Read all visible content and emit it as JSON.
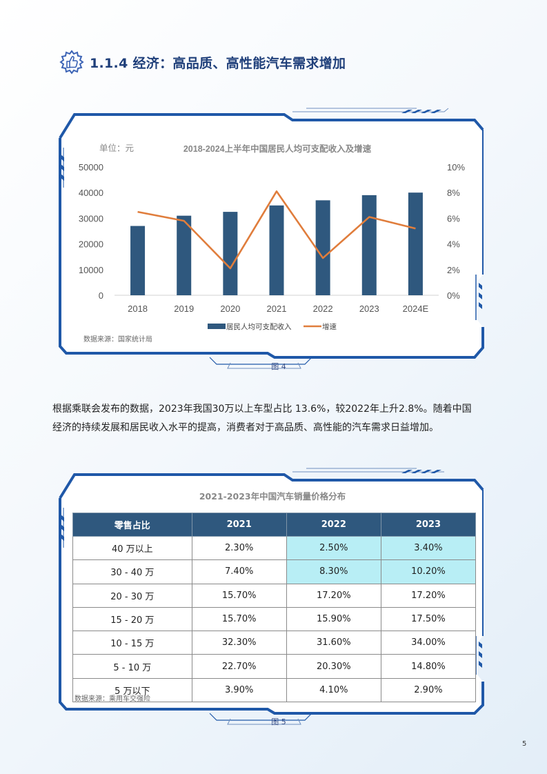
{
  "heading": {
    "icon": "thumbs-up-gear-icon",
    "title": "1.1.4 经济：高品质、高性能汽车需求增加"
  },
  "figure4": {
    "caption": "图 4",
    "source": "数据来源：国家统计局"
  },
  "chart_data": {
    "type": "bar",
    "title": "2018-2024上半年中国居民人均可支配收入及增速",
    "unit_label": "单位：元",
    "categories": [
      "2018",
      "2019",
      "2020",
      "2021",
      "2022",
      "2023",
      "2024E"
    ],
    "series": [
      {
        "name": "居民人均可支配收入",
        "type": "bar",
        "axis": "left",
        "color": "#2f587e",
        "values": [
          27000,
          31000,
          32500,
          35000,
          37000,
          39000,
          40000
        ]
      },
      {
        "name": "增速",
        "type": "line",
        "axis": "right",
        "color": "#e07d3c",
        "values": [
          6.5,
          5.8,
          2.1,
          8.1,
          2.9,
          6.1,
          5.2
        ]
      }
    ],
    "y_left": {
      "ticks": [
        "0",
        "10000",
        "20000",
        "30000",
        "40000",
        "50000"
      ],
      "ylim": [
        0,
        50000
      ]
    },
    "y_right": {
      "ticks": [
        "0%",
        "2%",
        "4%",
        "6%",
        "8%",
        "10%"
      ],
      "ylim": [
        0,
        10
      ]
    },
    "grid": false,
    "legend_position": "bottom"
  },
  "paragraph": {
    "line1": "根据乘联会发布的数据，2023年我国30万以上车型占比 13.6%，较2022年上升2.8%。随着中国",
    "line2": "经济的持续发展和居民收入水平的提高，消费者对于高品质、高性能的汽车需求日益增加。"
  },
  "figure5": {
    "title": "2021-2023年中国汽车销量价格分布",
    "caption": "图 5",
    "source": "数据来源：乘用车交强险",
    "headers": [
      "零售占比",
      "2021",
      "2022",
      "2023"
    ],
    "rows": [
      [
        "40 万以上",
        "2.30%",
        "2.50%",
        "3.40%"
      ],
      [
        "30 - 40 万",
        "7.40%",
        "8.30%",
        "10.20%"
      ],
      [
        "20 - 30 万",
        "15.70%",
        "17.20%",
        "17.20%"
      ],
      [
        "15 - 20 万",
        "15.70%",
        "15.90%",
        "17.50%"
      ],
      [
        "10 - 15 万",
        "32.30%",
        "31.60%",
        "34.00%"
      ],
      [
        "5 - 10 万",
        "22.70%",
        "20.30%",
        "14.80%"
      ],
      [
        "5 万以下",
        "3.90%",
        "4.10%",
        "2.90%"
      ]
    ],
    "highlight_color": "#b8eef5"
  },
  "page_number": "5"
}
